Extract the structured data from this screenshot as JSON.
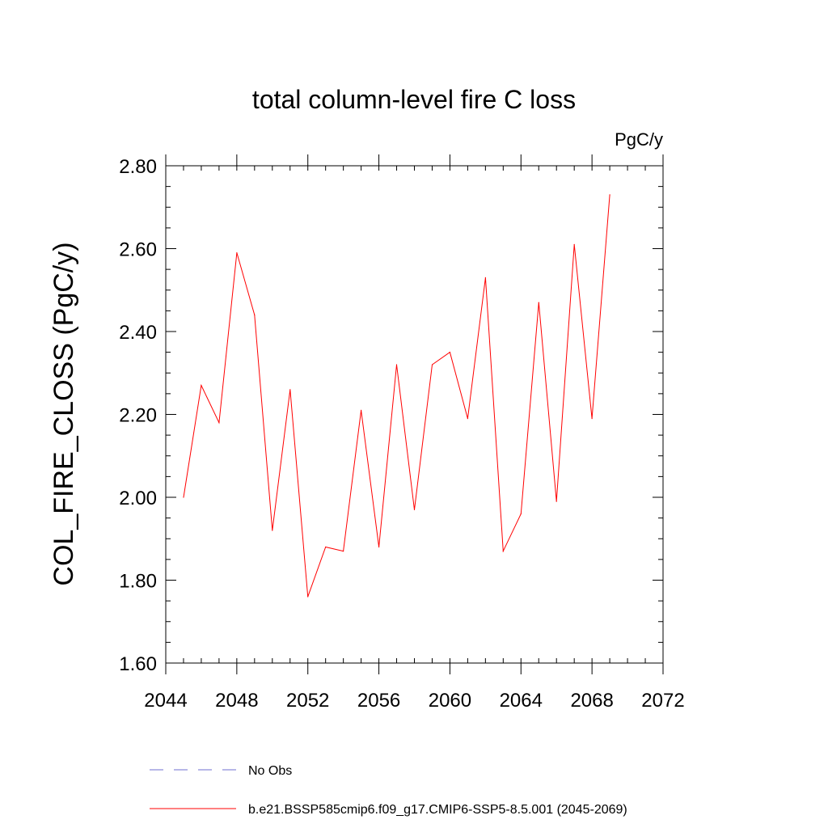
{
  "chart_data": {
    "type": "line",
    "title": "total column-level fire C loss",
    "units": "PgC/y",
    "xlabel": "",
    "ylabel": "COL_FIRE_CLOSS  (PgC/y)",
    "xlim": [
      2044,
      2072
    ],
    "ylim": [
      1.6,
      2.8
    ],
    "x_ticks": [
      2044,
      2048,
      2052,
      2056,
      2060,
      2064,
      2068,
      2072
    ],
    "x_tick_labels": [
      "2044",
      "2048",
      "2052",
      "2056",
      "2060",
      "2064",
      "2068",
      "2072"
    ],
    "y_ticks": [
      1.6,
      1.8,
      2.0,
      2.2,
      2.4,
      2.6,
      2.8
    ],
    "y_tick_labels": [
      "1.60",
      "1.80",
      "2.00",
      "2.20",
      "2.40",
      "2.60",
      "2.80"
    ],
    "series": [
      {
        "name": "b.e21.BSSP585cmip6.f09_g17.CMIP6-SSP5-8.5.001 (2045-2069)",
        "color": "#ff0000",
        "x": [
          2045,
          2046,
          2047,
          2048,
          2049,
          2050,
          2051,
          2052,
          2053,
          2054,
          2055,
          2056,
          2057,
          2058,
          2059,
          2060,
          2061,
          2062,
          2063,
          2064,
          2065,
          2066,
          2067,
          2068,
          2069
        ],
        "y": [
          2.0,
          2.27,
          2.18,
          2.59,
          2.44,
          1.92,
          2.26,
          1.76,
          1.88,
          1.87,
          2.21,
          1.88,
          2.32,
          1.97,
          2.32,
          2.35,
          2.19,
          2.53,
          1.87,
          1.96,
          2.47,
          1.99,
          2.61,
          2.19,
          2.73
        ]
      }
    ],
    "legend": [
      {
        "label": "No Obs",
        "style": "dashed",
        "color": "#6f6fd0"
      },
      {
        "label": "b.e21.BSSP585cmip6.f09_g17.CMIP6-SSP5-8.5.001 (2045-2069)",
        "style": "solid",
        "color": "#ff0000"
      }
    ],
    "legend_position": "bottom"
  }
}
